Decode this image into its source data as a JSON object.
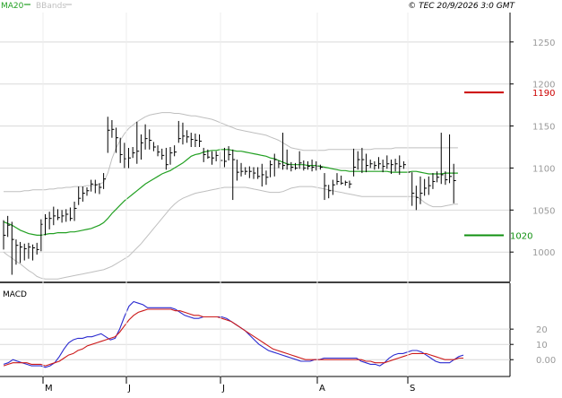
{
  "header": {
    "ma_legend": "MA20",
    "bb_legend": "BBands",
    "copyright": "© TEC 20/9/2026 3:0 GMT"
  },
  "colors": {
    "price": "#000000",
    "ma": "#22a022",
    "bands": "#bfbfbf",
    "grid": "#d9d9d9",
    "axis": "#000000",
    "tick_text": "#9a9a9a",
    "resistance": "#cc0000",
    "support": "#109010",
    "macd": "#2a2ad0",
    "signal": "#cc1a1a"
  },
  "chart_data": [
    {
      "type": "line",
      "title": "",
      "ylim": [
        965,
        1285
      ],
      "y_ticks": [
        1000,
        1050,
        1100,
        1150,
        1200,
        1250
      ],
      "y_tick_labels": [
        "1000",
        "1050",
        "1100",
        "1150",
        "1200",
        "1250"
      ],
      "x_tick_labels": [
        "M",
        "J",
        "J",
        "A",
        "S"
      ],
      "grid": true,
      "legend": "top-left",
      "price_bars": [
        [
          1003,
          1038,
          1020
        ],
        [
          1018,
          1043,
          1032
        ],
        [
          973,
          1036,
          1015
        ],
        [
          985,
          1015,
          1008
        ],
        [
          987,
          1012,
          1006
        ],
        [
          990,
          1010,
          1004
        ],
        [
          992,
          1011,
          1006
        ],
        [
          990,
          1009,
          1005
        ],
        [
          997,
          1011,
          1003
        ],
        [
          1001,
          1039,
          1033
        ],
        [
          1020,
          1045,
          1040
        ],
        [
          1027,
          1048,
          1040
        ],
        [
          1032,
          1054,
          1043
        ],
        [
          1038,
          1051,
          1041
        ],
        [
          1035,
          1050,
          1043
        ],
        [
          1036,
          1051,
          1045
        ],
        [
          1037,
          1053,
          1040
        ],
        [
          1037,
          1060,
          1052
        ],
        [
          1056,
          1078,
          1064
        ],
        [
          1060,
          1078,
          1070
        ],
        [
          1067,
          1077,
          1073
        ],
        [
          1072,
          1086,
          1081
        ],
        [
          1070,
          1086,
          1080
        ],
        [
          1069,
          1082,
          1077
        ],
        [
          1075,
          1094,
          1087
        ],
        [
          1118,
          1161,
          1145
        ],
        [
          1136,
          1157,
          1146
        ],
        [
          1118,
          1148,
          1136
        ],
        [
          1106,
          1136,
          1116
        ],
        [
          1100,
          1130,
          1111
        ],
        [
          1100,
          1124,
          1112
        ],
        [
          1112,
          1125,
          1118
        ],
        [
          1105,
          1155,
          1120
        ],
        [
          1110,
          1140,
          1130
        ],
        [
          1122,
          1152,
          1135
        ],
        [
          1122,
          1146,
          1133
        ],
        [
          1120,
          1131,
          1125
        ],
        [
          1114,
          1127,
          1119
        ],
        [
          1110,
          1123,
          1115
        ],
        [
          1098,
          1124,
          1104
        ],
        [
          1104,
          1125,
          1118
        ],
        [
          1114,
          1127,
          1119
        ],
        [
          1130,
          1156,
          1135
        ],
        [
          1128,
          1154,
          1138
        ],
        [
          1130,
          1145,
          1137
        ],
        [
          1125,
          1142,
          1134
        ],
        [
          1125,
          1141,
          1133
        ],
        [
          1125,
          1140,
          1132
        ],
        [
          1107,
          1124,
          1116
        ],
        [
          1111,
          1122,
          1113
        ],
        [
          1104,
          1120,
          1112
        ],
        [
          1108,
          1120,
          1115
        ],
        [
          1100,
          1119,
          1109
        ],
        [
          1101,
          1124,
          1108
        ],
        [
          1109,
          1126,
          1116
        ],
        [
          1062,
          1122,
          1110
        ],
        [
          1085,
          1110,
          1095
        ],
        [
          1090,
          1106,
          1096
        ],
        [
          1092,
          1101,
          1096
        ],
        [
          1088,
          1102,
          1096
        ],
        [
          1087,
          1101,
          1094
        ],
        [
          1087,
          1101,
          1090
        ],
        [
          1078,
          1105,
          1092
        ],
        [
          1080,
          1097,
          1089
        ],
        [
          1089,
          1109,
          1104
        ],
        [
          1090,
          1117,
          1110
        ],
        [
          1100,
          1109,
          1105
        ],
        [
          1098,
          1142,
          1103
        ],
        [
          1098,
          1122,
          1104
        ],
        [
          1096,
          1107,
          1101
        ],
        [
          1098,
          1106,
          1100
        ],
        [
          1099,
          1120,
          1106
        ],
        [
          1097,
          1109,
          1100
        ],
        [
          1098,
          1108,
          1102
        ],
        [
          1096,
          1110,
          1101
        ],
        [
          1097,
          1108,
          1102
        ],
        [
          1098,
          1104,
          1101
        ],
        [
          1062,
          1094,
          1079
        ],
        [
          1064,
          1080,
          1073
        ],
        [
          1068,
          1086,
          1080
        ],
        [
          1080,
          1094,
          1084
        ],
        [
          1080,
          1091,
          1082
        ],
        [
          1079,
          1085,
          1083
        ],
        [
          1076,
          1085,
          1081
        ],
        [
          1090,
          1123,
          1101
        ],
        [
          1098,
          1120,
          1110
        ],
        [
          1094,
          1124,
          1110
        ],
        [
          1095,
          1117,
          1103
        ],
        [
          1100,
          1110,
          1105
        ],
        [
          1098,
          1108,
          1103
        ],
        [
          1099,
          1113,
          1105
        ],
        [
          1095,
          1110,
          1102
        ],
        [
          1099,
          1115,
          1105
        ],
        [
          1093,
          1110,
          1104
        ],
        [
          1096,
          1111,
          1105
        ],
        [
          1092,
          1115,
          1102
        ],
        [
          1099,
          1108,
          1104
        ],
        [
          1061,
          1110,
          1095
        ],
        [
          1055,
          1095,
          1070
        ],
        [
          1050,
          1079,
          1065
        ],
        [
          1057,
          1090,
          1070
        ],
        [
          1067,
          1087,
          1076
        ],
        [
          1068,
          1090,
          1079
        ],
        [
          1075,
          1094,
          1084
        ],
        [
          1083,
          1096,
          1089
        ],
        [
          1081,
          1142,
          1092
        ],
        [
          1080,
          1096,
          1086
        ],
        [
          1082,
          1140,
          1090
        ],
        [
          1058,
          1105,
          1085
        ]
      ],
      "ma20": [
        1036,
        1034,
        1032,
        1029,
        1026,
        1024,
        1022,
        1021,
        1020,
        1020,
        1021,
        1022,
        1022,
        1023,
        1023,
        1023,
        1024,
        1024,
        1025,
        1026,
        1027,
        1028,
        1030,
        1032,
        1035,
        1040,
        1046,
        1051,
        1056,
        1061,
        1065,
        1069,
        1073,
        1077,
        1081,
        1084,
        1087,
        1090,
        1093,
        1095,
        1097,
        1100,
        1103,
        1106,
        1110,
        1114,
        1116,
        1117,
        1119,
        1120,
        1121,
        1121,
        1122,
        1122,
        1122,
        1121,
        1120,
        1120,
        1119,
        1118,
        1117,
        1116,
        1115,
        1114,
        1112,
        1111,
        1109,
        1107,
        1105,
        1104,
        1104,
        1104,
        1104,
        1103,
        1103,
        1103,
        1102,
        1101,
        1100,
        1099,
        1098,
        1097,
        1097,
        1096,
        1096,
        1096,
        1096,
        1096,
        1096,
        1096,
        1096,
        1096,
        1096,
        1095,
        1095,
        1095,
        1095,
        1095,
        1096,
        1096,
        1095,
        1094,
        1093,
        1093,
        1093,
        1093,
        1094,
        1094,
        1094,
        1094
      ],
      "bb_upper": [
        1072,
        1072,
        1072,
        1072,
        1072,
        1073,
        1073,
        1074,
        1074,
        1074,
        1074,
        1075,
        1075,
        1076,
        1076,
        1077,
        1077,
        1078,
        1078,
        1078,
        1079,
        1079,
        1080,
        1081,
        1083,
        1094,
        1111,
        1124,
        1133,
        1141,
        1147,
        1151,
        1155,
        1158,
        1161,
        1163,
        1164,
        1165,
        1166,
        1166,
        1166,
        1165,
        1165,
        1164,
        1163,
        1162,
        1162,
        1161,
        1160,
        1159,
        1158,
        1156,
        1154,
        1152,
        1150,
        1148,
        1146,
        1145,
        1144,
        1143,
        1142,
        1141,
        1140,
        1139,
        1137,
        1135,
        1133,
        1130,
        1127,
        1124,
        1123,
        1122,
        1121,
        1121,
        1121,
        1121,
        1121,
        1121,
        1122,
        1122,
        1122,
        1122,
        1122,
        1122,
        1122,
        1122,
        1122,
        1122,
        1122,
        1123,
        1123,
        1123,
        1123,
        1123,
        1124,
        1124,
        1124,
        1124,
        1124,
        1124,
        1124,
        1124,
        1124,
        1124,
        1124,
        1124,
        1124,
        1124,
        1124,
        1124
      ],
      "bb_lower": [
        1000,
        996,
        993,
        989,
        986,
        982,
        978,
        975,
        971,
        969,
        968,
        968,
        968,
        968,
        969,
        970,
        971,
        972,
        973,
        974,
        975,
        976,
        977,
        978,
        979,
        981,
        983,
        986,
        989,
        992,
        995,
        1000,
        1005,
        1010,
        1016,
        1022,
        1028,
        1034,
        1040,
        1046,
        1052,
        1057,
        1061,
        1064,
        1066,
        1068,
        1070,
        1071,
        1072,
        1073,
        1074,
        1075,
        1076,
        1077,
        1077,
        1077,
        1077,
        1077,
        1077,
        1076,
        1075,
        1074,
        1073,
        1072,
        1071,
        1071,
        1071,
        1072,
        1074,
        1076,
        1077,
        1078,
        1078,
        1078,
        1078,
        1077,
        1076,
        1075,
        1074,
        1073,
        1072,
        1071,
        1070,
        1069,
        1068,
        1067,
        1066,
        1066,
        1066,
        1066,
        1066,
        1066,
        1066,
        1066,
        1066,
        1066,
        1066,
        1066,
        1066,
        1066,
        1063,
        1059,
        1056,
        1054,
        1054,
        1054,
        1055,
        1056,
        1057,
        1057
      ],
      "support": 1020,
      "resistance": 1190,
      "annotations": [
        "1190",
        "1020"
      ]
    },
    {
      "type": "line",
      "title": "MACD",
      "ylim": [
        -11,
        50
      ],
      "y_ticks": [
        0,
        10,
        20
      ],
      "y_tick_labels": [
        "0.00",
        "10",
        "20"
      ],
      "series": [
        {
          "name": "",
          "values": [
            -3,
            -2,
            0,
            -1,
            -2,
            -3,
            -4,
            -4,
            -4,
            -5,
            -4,
            -2,
            2,
            7,
            11,
            13,
            14,
            14,
            15,
            15,
            16,
            17,
            15,
            13,
            14,
            20,
            28,
            35,
            38,
            37,
            36,
            34,
            34,
            34,
            34,
            34,
            34,
            33,
            31,
            29,
            28,
            27,
            27,
            28,
            28,
            28,
            28,
            28,
            27,
            25,
            23,
            21,
            19,
            16,
            13,
            10,
            8,
            6,
            5,
            4,
            3,
            2,
            1,
            0,
            -1,
            -1,
            -1,
            0,
            0,
            1,
            1,
            1,
            1,
            1,
            1,
            1,
            1,
            -1,
            -2,
            -3,
            -3,
            -4,
            -2,
            1,
            3,
            4,
            4,
            5,
            6,
            6,
            5,
            3,
            1,
            -1,
            -2,
            -2,
            -2,
            0,
            2,
            3
          ]
        },
        {
          "name": "",
          "values": [
            -4,
            -3,
            -2,
            -2,
            -2,
            -2,
            -3,
            -3,
            -3,
            -4,
            -3,
            -2,
            -1,
            1,
            3,
            4,
            6,
            7,
            9,
            10,
            11,
            12,
            13,
            14,
            15,
            18,
            22,
            26,
            29,
            31,
            32,
            33,
            33,
            33,
            33,
            33,
            33,
            32,
            32,
            31,
            30,
            29,
            29,
            28,
            28,
            28,
            28,
            27,
            26,
            25,
            23,
            21,
            19,
            17,
            15,
            13,
            11,
            9,
            7,
            6,
            5,
            4,
            3,
            2,
            1,
            0,
            0,
            0,
            0,
            0,
            0,
            0,
            0,
            0,
            0,
            0,
            0,
            0,
            -1,
            -1,
            -2,
            -2,
            -2,
            -1,
            0,
            1,
            2,
            3,
            4,
            4,
            4,
            4,
            3,
            2,
            1,
            0,
            0,
            0,
            1,
            1
          ]
        }
      ]
    }
  ]
}
